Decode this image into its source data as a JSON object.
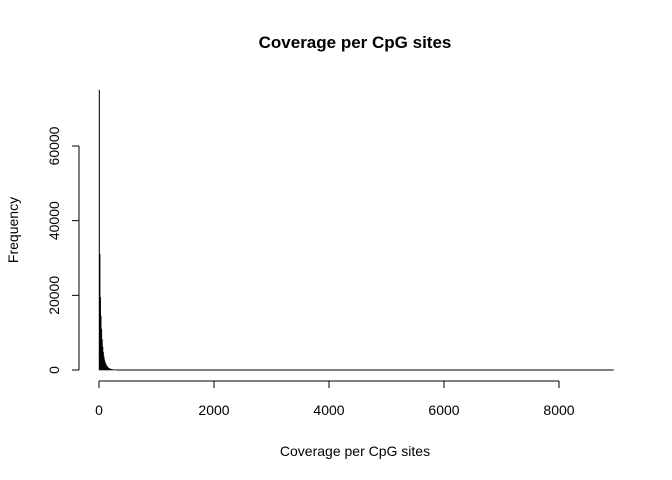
{
  "chart_data": {
    "type": "bar",
    "title": "Coverage per CpG sites",
    "xlabel": "Coverage per CpG sites",
    "ylabel": "Frequency",
    "xlim": [
      0,
      9000
    ],
    "ylim": [
      0,
      75000
    ],
    "xticks": [
      0,
      2000,
      4000,
      6000,
      8000
    ],
    "yticks": [
      0,
      20000,
      40000,
      60000
    ],
    "grid": false,
    "bar_color": "#000000",
    "bins": [
      {
        "x0": 0,
        "x1": 10,
        "count": 75000
      },
      {
        "x0": 10,
        "x1": 20,
        "count": 31000
      },
      {
        "x0": 20,
        "x1": 30,
        "count": 19500
      },
      {
        "x0": 30,
        "x1": 40,
        "count": 14500
      },
      {
        "x0": 40,
        "x1": 50,
        "count": 11000
      },
      {
        "x0": 50,
        "x1": 60,
        "count": 8200
      },
      {
        "x0": 60,
        "x1": 70,
        "count": 6200
      },
      {
        "x0": 70,
        "x1": 80,
        "count": 4700
      },
      {
        "x0": 80,
        "x1": 90,
        "count": 3600
      },
      {
        "x0": 90,
        "x1": 100,
        "count": 2800
      },
      {
        "x0": 100,
        "x1": 110,
        "count": 2200
      },
      {
        "x0": 110,
        "x1": 120,
        "count": 1750
      },
      {
        "x0": 120,
        "x1": 130,
        "count": 1400
      },
      {
        "x0": 130,
        "x1": 140,
        "count": 1100
      },
      {
        "x0": 140,
        "x1": 150,
        "count": 900
      },
      {
        "x0": 150,
        "x1": 160,
        "count": 700
      },
      {
        "x0": 160,
        "x1": 170,
        "count": 560
      },
      {
        "x0": 170,
        "x1": 180,
        "count": 450
      },
      {
        "x0": 180,
        "x1": 190,
        "count": 360
      },
      {
        "x0": 190,
        "x1": 200,
        "count": 290
      },
      {
        "x0": 200,
        "x1": 210,
        "count": 230
      },
      {
        "x0": 210,
        "x1": 220,
        "count": 190
      },
      {
        "x0": 220,
        "x1": 230,
        "count": 150
      },
      {
        "x0": 230,
        "x1": 240,
        "count": 120
      },
      {
        "x0": 240,
        "x1": 250,
        "count": 100
      },
      {
        "x0": 250,
        "x1": 260,
        "count": 80
      },
      {
        "x0": 260,
        "x1": 270,
        "count": 65
      },
      {
        "x0": 270,
        "x1": 280,
        "count": 50
      },
      {
        "x0": 280,
        "x1": 290,
        "count": 40
      },
      {
        "x0": 290,
        "x1": 300,
        "count": 30
      }
    ],
    "tail_range": [
      300,
      8950
    ]
  }
}
